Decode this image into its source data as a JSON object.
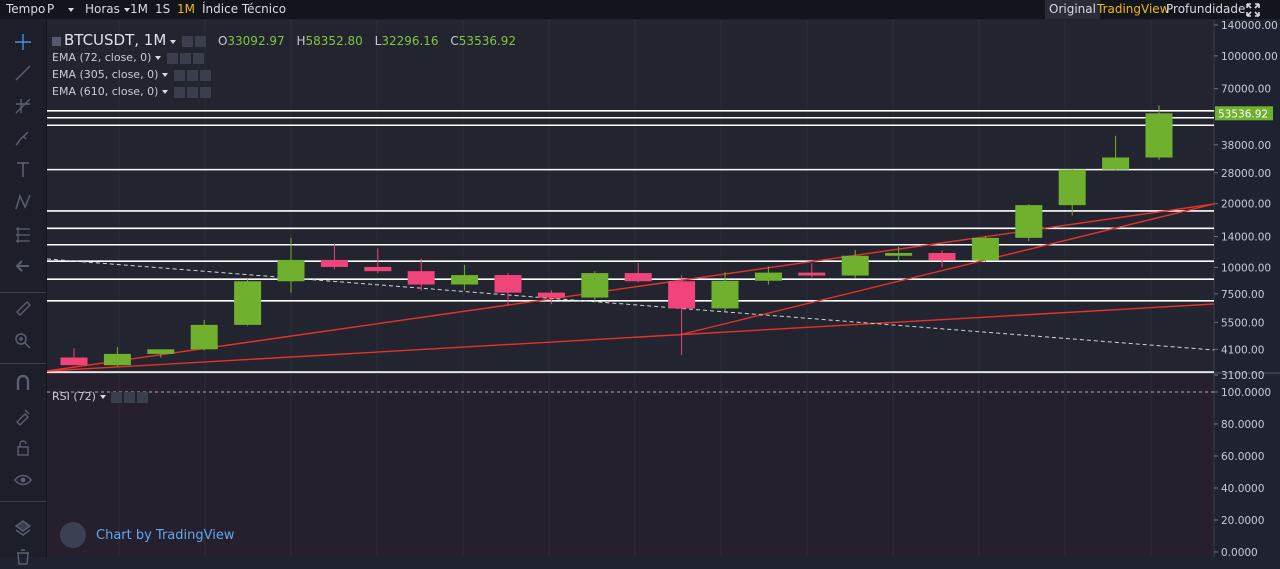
{
  "topbar": {
    "tempo": "Tempo",
    "p": "P",
    "horas": "Horas",
    "tf1": "1M",
    "tf2": "1S",
    "tf3": "1M",
    "indice": "Índice Técnico",
    "original": "Original",
    "tradingview": "TradingView",
    "profundidade": "Profundidade"
  },
  "legend": {
    "symbol": "BTCUSDT, 1M",
    "o_label": "O",
    "o_value": "33092.97",
    "h_label": "H",
    "h_value": "58352.80",
    "l_label": "L",
    "l_value": "32296.16",
    "c_label": "C",
    "c_value": "53536.92"
  },
  "indicators": [
    "EMA (72, close, 0)",
    "EMA (305, close, 0)",
    "EMA (610, close, 0)"
  ],
  "rsi_label": "RSI (72)",
  "watermark": "Chart by TradingView",
  "colors": {
    "up": "#6fb12f",
    "down": "#f0447a",
    "trend": "#e8312a",
    "hline": "#ffffff",
    "price_tag": "#6fb12f"
  },
  "chart_data": [
    {
      "type": "candlestick",
      "scale": "log",
      "price_axis_ticks": [
        "140000.00",
        "100000.00",
        "70000.00",
        "53536.92",
        "38000.00",
        "28000.00",
        "20000.00",
        "14000.00",
        "10000.00",
        "7500.00",
        "5500.00",
        "4100.00",
        "3100.00"
      ],
      "last_price": "53536.92",
      "candles": [
        {
          "o": 3750,
          "h": 4150,
          "l": 3450,
          "c": 3450
        },
        {
          "o": 3450,
          "h": 4200,
          "l": 3400,
          "c": 3900
        },
        {
          "o": 3900,
          "h": 4100,
          "l": 3750,
          "c": 4100
        },
        {
          "o": 4100,
          "h": 5650,
          "l": 4050,
          "c": 5350
        },
        {
          "o": 5350,
          "h": 8800,
          "l": 5300,
          "c": 8600
        },
        {
          "o": 8600,
          "h": 13800,
          "l": 7600,
          "c": 10850
        },
        {
          "o": 10850,
          "h": 13000,
          "l": 9800,
          "c": 10050
        },
        {
          "o": 10050,
          "h": 12300,
          "l": 9400,
          "c": 9600
        },
        {
          "o": 9600,
          "h": 11000,
          "l": 7750,
          "c": 8300
        },
        {
          "o": 8300,
          "h": 10300,
          "l": 7800,
          "c": 9200
        },
        {
          "o": 9200,
          "h": 9400,
          "l": 6600,
          "c": 7600
        },
        {
          "o": 7600,
          "h": 7800,
          "l": 6700,
          "c": 7200
        },
        {
          "o": 7200,
          "h": 9600,
          "l": 6900,
          "c": 9400
        },
        {
          "o": 9400,
          "h": 10500,
          "l": 8500,
          "c": 8600
        },
        {
          "o": 8600,
          "h": 9200,
          "l": 3850,
          "c": 6400
        },
        {
          "o": 6400,
          "h": 9500,
          "l": 6200,
          "c": 8650
        },
        {
          "o": 8650,
          "h": 10100,
          "l": 8300,
          "c": 9450
        },
        {
          "o": 9450,
          "h": 10450,
          "l": 9000,
          "c": 9150
        },
        {
          "o": 9150,
          "h": 12100,
          "l": 8900,
          "c": 11350
        },
        {
          "o": 11350,
          "h": 12500,
          "l": 10600,
          "c": 11700
        },
        {
          "o": 11700,
          "h": 12000,
          "l": 10000,
          "c": 10800
        },
        {
          "o": 10800,
          "h": 14100,
          "l": 10600,
          "c": 13800
        },
        {
          "o": 13800,
          "h": 19900,
          "l": 13300,
          "c": 19700
        },
        {
          "o": 19700,
          "h": 29300,
          "l": 17600,
          "c": 29000
        },
        {
          "o": 29000,
          "h": 41900,
          "l": 28800,
          "c": 33100
        },
        {
          "o": 33092.97,
          "h": 58352.8,
          "l": 32296.16,
          "c": 53536.92
        }
      ],
      "horizontal_levels": [
        3200,
        6950,
        8800,
        10700,
        12800,
        15300,
        18500,
        29000,
        47000,
        51000,
        55000
      ],
      "rsi_axis_ticks": [
        "100.0000",
        "80.0000",
        "60.0000",
        "40.0000",
        "20.0000",
        "0.0000"
      ]
    }
  ]
}
